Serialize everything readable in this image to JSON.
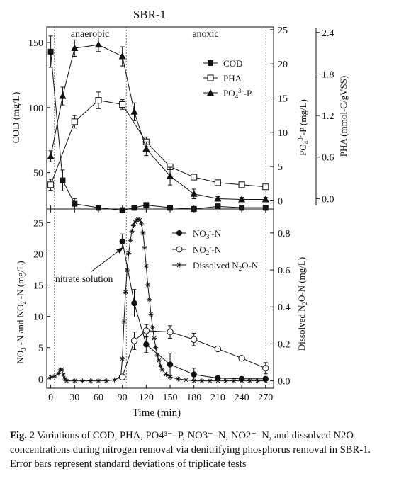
{
  "chart_data": [
    {
      "type": "line",
      "title": "SBR-1",
      "phase_labels": [
        "anaerobic",
        "anoxic"
      ],
      "xlim": [
        -5,
        280
      ],
      "x_ticks": [
        0,
        30,
        60,
        90,
        120,
        150,
        180,
        210,
        240,
        270
      ],
      "y_left": {
        "label": "COD (mg/L)",
        "ylim": [
          22,
          162
        ],
        "ticks": [
          50,
          100,
          150
        ],
        "series": [
          {
            "name": "COD",
            "marker": "filled-square",
            "x": [
              0,
              15,
              30,
              60,
              90,
              105,
              120,
              150,
              180,
              210,
              240,
              270
            ],
            "y": [
              143,
              44,
              26,
              23,
              21,
              23,
              25,
              23,
              22,
              24,
              23,
              23
            ],
            "err": [
              12,
              8,
              4,
              2,
              2,
              2,
              2,
              2,
              2,
              2,
              2,
              2
            ]
          }
        ]
      },
      "y_right_1": {
        "label": "PO4^3--P (mg/L)",
        "ylim": [
          -1.2,
          25.4
        ],
        "ticks": [
          0,
          5,
          10,
          15,
          20,
          25
        ],
        "series": [
          {
            "name": "PO4^3--P",
            "marker": "filled-triangle",
            "x": [
              0,
              15,
              30,
              60,
              90,
              105,
              120,
              150,
              180,
              210,
              240,
              270
            ],
            "y": [
              6.5,
              15.3,
              22.3,
              22.8,
              21.1,
              13.0,
              7.6,
              3.6,
              1.0,
              0.3,
              0.2,
              0.2
            ],
            "err": [
              0.8,
              1.3,
              1.2,
              1.0,
              1.4,
              1.3,
              1.0,
              1.3,
              0.7,
              0.3,
              0.3,
              0.3
            ]
          }
        ]
      },
      "y_right_2": {
        "label": "PHA (mmol-C/gVSS)",
        "ylim": [
          -0.15,
          2.48
        ],
        "ticks": [
          0.0,
          0.6,
          1.2,
          1.8,
          2.4
        ],
        "series": [
          {
            "name": "PHA",
            "marker": "open-square",
            "x": [
              0,
              30,
              60,
              90,
              120,
              150,
              180,
              210,
              240,
              270
            ],
            "y": [
              0.2,
              1.11,
              1.42,
              1.36,
              0.82,
              0.46,
              0.31,
              0.23,
              0.2,
              0.17
            ],
            "err": [
              0.08,
              0.09,
              0.12,
              0.07,
              0.07,
              0.04,
              0.04,
              0.02,
              0.02,
              0.02
            ]
          }
        ]
      },
      "legend": [
        "COD",
        "PHA",
        "PO4^3--P"
      ]
    },
    {
      "type": "line",
      "xlabel": "Time (min)",
      "xlim": [
        -5,
        280
      ],
      "x_ticks": [
        0,
        30,
        60,
        90,
        120,
        150,
        180,
        210,
        240,
        270
      ],
      "annotation": "nitrate solution",
      "y_left": {
        "label": "NO3^--N and NO2^--N (mg/L)",
        "ylim": [
          -1.5,
          27.2
        ],
        "ticks": [
          0,
          5,
          10,
          15,
          20,
          25
        ],
        "series": [
          {
            "name": "NO3^--N",
            "marker": "filled-circle",
            "x": [
              90,
              105,
              120,
              150,
              180,
              210,
              240,
              270
            ],
            "y": [
              22.0,
              12.1,
              5.5,
              2.3,
              0.7,
              0.1,
              0.0,
              0.0
            ],
            "err": [
              1.2,
              2.2,
              1.3,
              1.8,
              1.0,
              0.3,
              0.2,
              0.2
            ]
          },
          {
            "name": "NO2^--N",
            "marker": "open-circle",
            "x": [
              90,
              105,
              120,
              150,
              180,
              210,
              240,
              270
            ],
            "y": [
              0.3,
              6.1,
              7.7,
              7.5,
              6.3,
              4.8,
              3.3,
              1.7
            ],
            "err": [
              0.3,
              1.4,
              1.0,
              1.0,
              1.0,
              0.3,
              0.3,
              0.9
            ]
          }
        ]
      },
      "y_right": {
        "label": "Dissolved N2O-N (mg/L)",
        "ylim": [
          -0.04,
          0.93
        ],
        "ticks": [
          0.0,
          0.2,
          0.4,
          0.6,
          0.8
        ],
        "series": [
          {
            "name": "Dissolved N2O-N",
            "marker": "asterisk",
            "x": [
              0,
              5,
              10,
              12,
              14,
              16,
              18,
              20,
              30,
              40,
              50,
              60,
              70,
              80,
              88,
              90,
              92,
              94,
              96,
              98,
              100,
              102,
              104,
              106,
              108,
              110,
              112,
              114,
              116,
              118,
              120,
              122,
              124,
              126,
              128,
              130,
              132,
              134,
              136,
              138,
              140,
              145,
              150,
              160,
              170,
              180,
              190,
              200,
              210,
              220,
              230,
              240,
              250,
              260,
              270
            ],
            "y": [
              0.02,
              0.025,
              0.04,
              0.06,
              0.06,
              0.03,
              0.01,
              0.0,
              0.0,
              0.0,
              0.0,
              0.0,
              0.0,
              0.005,
              0.02,
              0.12,
              0.32,
              0.48,
              0.6,
              0.69,
              0.76,
              0.81,
              0.84,
              0.86,
              0.87,
              0.875,
              0.87,
              0.85,
              0.8,
              0.72,
              0.62,
              0.52,
              0.44,
              0.36,
              0.29,
              0.23,
              0.18,
              0.14,
              0.11,
              0.08,
              0.06,
              0.035,
              0.02,
              0.01,
              0.005,
              0.0,
              0.0,
              0.0,
              0.0,
              0.0,
              0.0,
              0.0,
              0.0,
              0.0,
              0.0
            ]
          }
        ]
      },
      "legend": [
        "NO3^--N",
        "NO2^--N",
        "Dissolved N2O-N"
      ]
    }
  ],
  "caption": {
    "label": "Fig. 2",
    "text": "Variations of COD, PHA, PO4³⁻–P, NO3⁻–N, NO2⁻–N, and dissolved N2O concentrations during nitrogen removal via denitrifying phosphorus removal in SBR-1. Error bars represent standard deviations of triplicate tests"
  }
}
